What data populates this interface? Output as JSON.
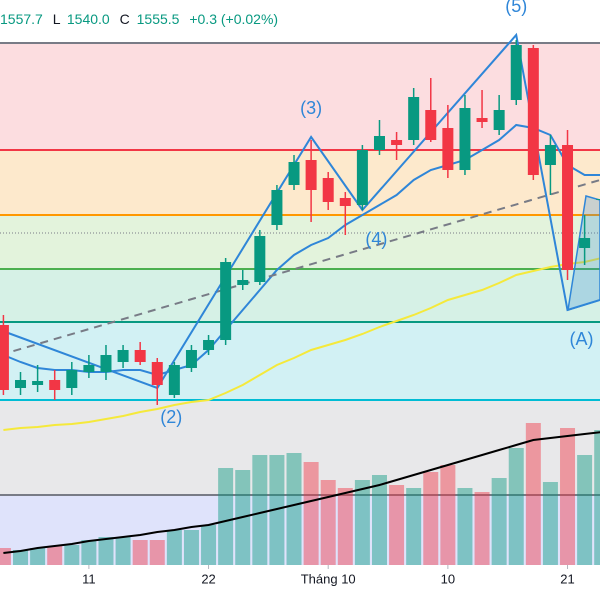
{
  "chart_data": {
    "type": "candlestick",
    "header": [
      "1557.7",
      "L",
      "1540.0",
      "C",
      "1555.5",
      "+0.3 (+0.02%)"
    ],
    "xlim": [
      -0.2,
      34.9
    ],
    "ylim": [
      1375,
      1655
    ],
    "vlim": [
      0,
      280
    ],
    "xticks": [
      {
        "value": 5,
        "label": "11"
      },
      {
        "value": 12,
        "label": "22"
      },
      {
        "value": 19,
        "label": "Tháng 10"
      },
      {
        "value": 26,
        "label": "10"
      },
      {
        "value": 33,
        "label": "21"
      }
    ],
    "up_color": "#089981",
    "down_color": "#f23645",
    "ohlc": {
      "open": [
        1492.5,
        1461,
        1462.5,
        1465,
        1461,
        1469,
        1469,
        1474,
        1480,
        1474,
        1457.5,
        1471,
        1480,
        1485,
        1512.5,
        1514,
        1542.5,
        1562.5,
        1575,
        1566,
        1556,
        1552.5,
        1580,
        1585,
        1585,
        1600,
        1591,
        1570,
        1596,
        1590,
        1605,
        1631,
        1572.5,
        1582.5,
        1531,
        1555.2
      ],
      "high": [
        1497.5,
        1469,
        1472.5,
        1470,
        1474,
        1477.5,
        1482.5,
        1482.5,
        1484,
        1476,
        1474,
        1482.5,
        1487.5,
        1526,
        1520,
        1540,
        1562.5,
        1577.5,
        1585,
        1569,
        1559,
        1582.5,
        1595,
        1589,
        1611,
        1616,
        1602.5,
        1607.5,
        1610,
        1607.5,
        1635,
        1632.5,
        1587.5,
        1590,
        1547.5,
        1557.7
      ],
      "low": [
        1457.5,
        1457.5,
        1459,
        1455,
        1457.5,
        1466,
        1465,
        1471,
        1472.5,
        1452.5,
        1456,
        1469,
        1477.5,
        1482.5,
        1510,
        1512.5,
        1540,
        1560,
        1544,
        1550,
        1537.5,
        1550,
        1577.5,
        1575,
        1582.5,
        1584,
        1566,
        1567.5,
        1591,
        1587.5,
        1602.5,
        1565,
        1557.5,
        1515,
        1522.5,
        1540
      ],
      "close": [
        1460,
        1465,
        1464.5,
        1460,
        1470,
        1472.5,
        1477.5,
        1480,
        1474,
        1462.5,
        1472.5,
        1480,
        1485,
        1524,
        1515,
        1537,
        1560,
        1574,
        1560,
        1554,
        1552,
        1580,
        1587,
        1582.5,
        1606.5,
        1585,
        1570,
        1601,
        1594,
        1600,
        1632.5,
        1567.5,
        1582.5,
        1520,
        1536,
        1555.5
      ]
    },
    "volume": [
      17,
      15,
      17,
      19,
      20,
      25,
      28,
      28,
      25,
      25,
      35,
      35,
      40,
      97,
      95,
      110,
      110,
      112,
      103,
      85,
      77,
      85,
      90,
      80,
      77,
      93,
      100,
      77,
      73,
      87,
      117,
      142,
      83,
      137,
      110,
      135
    ],
    "volume_ma": {
      "color": "#000000",
      "values": [
        12,
        14,
        17,
        19,
        21,
        24,
        26,
        28,
        30,
        33,
        35,
        38,
        40,
        44,
        48,
        52,
        56,
        60,
        64,
        68,
        72,
        76,
        80,
        85,
        90,
        95,
        100,
        105,
        110,
        115,
        120,
        125,
        127,
        129,
        131,
        133
      ]
    },
    "price_ma": [
      {
        "color": "#f5e93b",
        "values": [
          1440,
          1441,
          1441.5,
          1442.5,
          1443,
          1444,
          1445.5,
          1447,
          1449,
          1450.5,
          1452.5,
          1454,
          1455,
          1458.5,
          1462.5,
          1467.5,
          1472.5,
          1476,
          1480,
          1482.5,
          1485,
          1488,
          1491.5,
          1494.5,
          1497.5,
          1501,
          1505,
          1507.5,
          1510,
          1513.5,
          1517.5,
          1519.5,
          1521.5,
          1523,
          1524,
          1526
        ]
      },
      {
        "color": "#2f86d8",
        "values": [
          1477.5,
          1474,
          1471,
          1470,
          1470,
          1469,
          1469,
          1470,
          1470,
          1467.5,
          1470,
          1472.5,
          1480,
          1490,
          1500,
          1510,
          1520,
          1527.5,
          1532.5,
          1536,
          1542.5,
          1547.5,
          1552.5,
          1557.5,
          1565,
          1570,
          1572.5,
          1575,
          1580,
          1585,
          1592.5,
          1591,
          1587.5,
          1572.5,
          1567.5,
          1567.5
        ]
      }
    ],
    "fib_levels": [
      {
        "value": 1633.5,
        "color": "#787b86",
        "fill": "#fcdde0"
      },
      {
        "value": 1580,
        "color": "#f23645",
        "fill": "#fde9cc"
      },
      {
        "value": 1547.5,
        "color": "#ff9800",
        "fill": "#e3f3dc"
      },
      {
        "value": 1520.5,
        "color": "#4caf50",
        "fill": "#d6f1e6"
      },
      {
        "value": 1494,
        "color": "#089981",
        "fill": "#d2f1f4"
      },
      {
        "value": 1455,
        "color": "#00bcd4",
        "fill": "#e8e8ea"
      },
      {
        "value": 1407.5,
        "color": "#787b86",
        "fill": "#dfe3fb"
      }
    ],
    "price_line": 1538.5,
    "trendline": {
      "color": "#787b86",
      "x": [
        -0.2,
        34.9
      ],
      "y": [
        1477.5,
        1565
      ]
    },
    "wave": {
      "color": "#2f86d8",
      "x": [
        -0.2,
        9,
        18,
        21,
        30,
        33,
        34.9
      ],
      "y": [
        1490,
        1461,
        1586.5,
        1550,
        1637.5,
        1500,
        1505
      ],
      "labels": [
        null,
        "(2)",
        "(3)",
        "(4)",
        "(5)",
        "(A)",
        null
      ]
    }
  }
}
